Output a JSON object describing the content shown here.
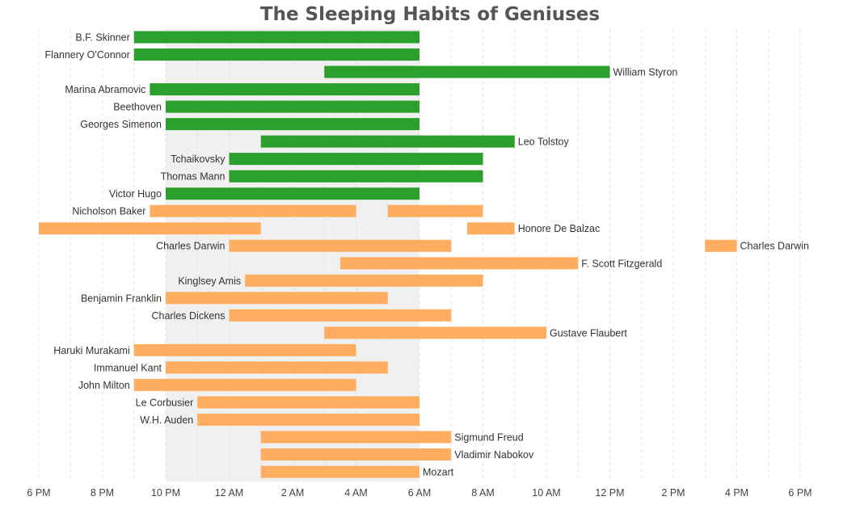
{
  "chart_data": {
    "type": "bar",
    "title": "The Sleeping Habits of Geniuses",
    "xlabel": "",
    "ylabel": "",
    "grid": true,
    "x_axis": {
      "range_hours_from_6pm": [
        0,
        24
      ],
      "ticks": [
        "6 PM",
        "8 PM",
        "10 PM",
        "12 AM",
        "2 AM",
        "4 AM",
        "6 AM",
        "8 AM",
        "10 AM",
        "12 PM",
        "2 PM",
        "4 PM",
        "6 PM"
      ]
    },
    "night_band": {
      "start": "10 PM",
      "end": "6 AM",
      "color": "#f0f0f0"
    },
    "colors": {
      "group_a": "#2ca02c",
      "group_b": "#ffae61"
    },
    "rows": [
      {
        "name": "B.F. Skinner",
        "group": "group_a",
        "label_side": "left",
        "segments": [
          {
            "start": "9 PM",
            "end": "6 AM"
          }
        ]
      },
      {
        "name": "Flannery O'Connor",
        "group": "group_a",
        "label_side": "left",
        "segments": [
          {
            "start": "9 PM",
            "end": "6 AM"
          }
        ]
      },
      {
        "name": "William Styron",
        "group": "group_a",
        "label_side": "right",
        "segments": [
          {
            "start": "3 AM",
            "end": "12 PM"
          }
        ]
      },
      {
        "name": "Marina Abramovic",
        "group": "group_a",
        "label_side": "left",
        "segments": [
          {
            "start": "9:30 PM",
            "end": "6 AM"
          }
        ]
      },
      {
        "name": "Beethoven",
        "group": "group_a",
        "label_side": "left",
        "segments": [
          {
            "start": "10 PM",
            "end": "6 AM"
          }
        ]
      },
      {
        "name": "Georges Simenon",
        "group": "group_a",
        "label_side": "left",
        "segments": [
          {
            "start": "10 PM",
            "end": "6 AM"
          }
        ]
      },
      {
        "name": "Leo Tolstoy",
        "group": "group_a",
        "label_side": "right",
        "segments": [
          {
            "start": "1 AM",
            "end": "9 AM"
          }
        ]
      },
      {
        "name": "Tchaikovsky",
        "group": "group_a",
        "label_side": "left",
        "segments": [
          {
            "start": "12 AM",
            "end": "8 AM"
          }
        ]
      },
      {
        "name": "Thomas Mann",
        "group": "group_a",
        "label_side": "left",
        "segments": [
          {
            "start": "12 AM",
            "end": "8 AM"
          }
        ]
      },
      {
        "name": "Victor Hugo",
        "group": "group_a",
        "label_side": "left",
        "segments": [
          {
            "start": "10 PM",
            "end": "6 AM"
          }
        ]
      },
      {
        "name": "Nicholson Baker",
        "group": "group_b",
        "label_side": "left",
        "segments": [
          {
            "start": "9:30 PM",
            "end": "4 AM"
          },
          {
            "start": "5 AM",
            "end": "8 AM"
          }
        ]
      },
      {
        "name": "Honore De Balzac",
        "group": "group_b",
        "label_side": "right",
        "segments": [
          {
            "start": "6 PM",
            "end": "1 AM"
          },
          {
            "start": "7:30 AM",
            "end": "9 AM"
          }
        ]
      },
      {
        "name": "Charles Darwin",
        "group": "group_b",
        "label_side": "left",
        "segments": [
          {
            "start": "12 AM",
            "end": "7 AM"
          }
        ]
      },
      {
        "name": "Charles Darwin",
        "group": "group_b",
        "label_side": "right",
        "shares_row_with_previous": true,
        "segments": [
          {
            "start": "3 PM",
            "end": "4 PM"
          }
        ]
      },
      {
        "name": "F. Scott Fitzgerald",
        "group": "group_b",
        "label_side": "right",
        "segments": [
          {
            "start": "3:30 AM",
            "end": "11 AM"
          }
        ]
      },
      {
        "name": "Kinglsey Amis",
        "group": "group_b",
        "label_side": "left",
        "segments": [
          {
            "start": "12:30 AM",
            "end": "8 AM"
          }
        ]
      },
      {
        "name": "Benjamin Franklin",
        "group": "group_b",
        "label_side": "left",
        "segments": [
          {
            "start": "10 PM",
            "end": "5 AM"
          }
        ]
      },
      {
        "name": "Charles Dickens",
        "group": "group_b",
        "label_side": "left",
        "segments": [
          {
            "start": "12 AM",
            "end": "7 AM"
          }
        ]
      },
      {
        "name": "Gustave Flaubert",
        "group": "group_b",
        "label_side": "right",
        "segments": [
          {
            "start": "3 AM",
            "end": "10 AM"
          }
        ]
      },
      {
        "name": "Haruki Murakami",
        "group": "group_b",
        "label_side": "left",
        "segments": [
          {
            "start": "9 PM",
            "end": "4 AM"
          }
        ]
      },
      {
        "name": "Immanuel Kant",
        "group": "group_b",
        "label_side": "left",
        "segments": [
          {
            "start": "10 PM",
            "end": "5 AM"
          }
        ]
      },
      {
        "name": "John Milton",
        "group": "group_b",
        "label_side": "left",
        "segments": [
          {
            "start": "9 PM",
            "end": "4 AM"
          }
        ]
      },
      {
        "name": "Le Corbusier",
        "group": "group_b",
        "label_side": "left",
        "segments": [
          {
            "start": "11 PM",
            "end": "6 AM"
          }
        ]
      },
      {
        "name": "W.H. Auden",
        "group": "group_b",
        "label_side": "left",
        "segments": [
          {
            "start": "11 PM",
            "end": "6 AM"
          }
        ]
      },
      {
        "name": "Sigmund Freud",
        "group": "group_b",
        "label_side": "right",
        "segments": [
          {
            "start": "1 AM",
            "end": "7 AM"
          }
        ]
      },
      {
        "name": "Vladimir Nabokov",
        "group": "group_b",
        "label_side": "right",
        "segments": [
          {
            "start": "1 AM",
            "end": "7 AM"
          }
        ]
      },
      {
        "name": "Mozart",
        "group": "group_b",
        "label_side": "right",
        "segments": [
          {
            "start": "1 AM",
            "end": "6 AM"
          }
        ]
      }
    ]
  }
}
